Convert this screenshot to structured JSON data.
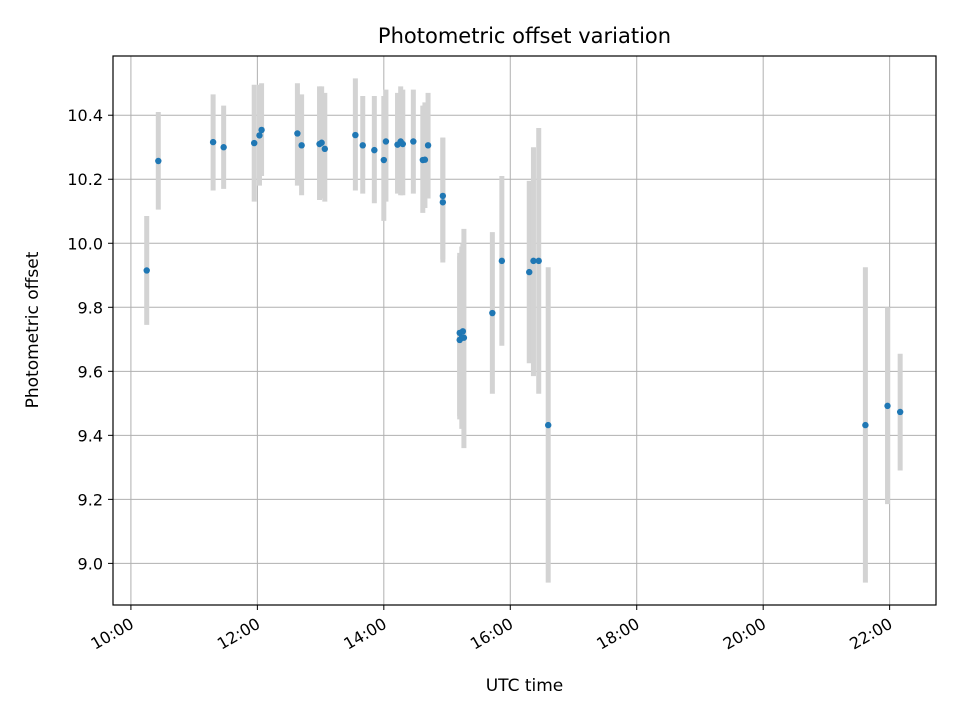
{
  "chart_data": {
    "type": "scatter",
    "title": "Photometric offset variation",
    "xlabel": "UTC time",
    "ylabel": "Photometric offset",
    "x_axis": {
      "kind": "time",
      "range": [
        "09:43",
        "22:44"
      ],
      "ticks": [
        "10:00",
        "12:00",
        "14:00",
        "16:00",
        "18:00",
        "20:00",
        "22:00"
      ]
    },
    "y_axis": {
      "range": [
        8.87,
        10.585
      ],
      "ticks": [
        "9.0",
        "9.2",
        "9.4",
        "9.6",
        "9.8",
        "10.0",
        "10.2",
        "10.4"
      ]
    },
    "grid": true,
    "colors": {
      "points": "#1f77b4",
      "error_bars": "#d3d3d3"
    },
    "points": [
      {
        "x": "10:15",
        "y": 9.915,
        "yerr": [
          9.745,
          10.085
        ]
      },
      {
        "x": "10:26",
        "y": 10.257,
        "yerr": [
          10.105,
          10.41
        ]
      },
      {
        "x": "11:18",
        "y": 10.316,
        "yerr": [
          10.165,
          10.465
        ]
      },
      {
        "x": "11:28",
        "y": 10.3,
        "yerr": [
          10.17,
          10.43
        ]
      },
      {
        "x": "11:57",
        "y": 10.313,
        "yerr": [
          10.13,
          10.495
        ]
      },
      {
        "x": "12:02",
        "y": 10.337,
        "yerr": [
          10.18,
          10.495
        ]
      },
      {
        "x": "12:04",
        "y": 10.354,
        "yerr": [
          10.21,
          10.5
        ]
      },
      {
        "x": "12:38",
        "y": 10.343,
        "yerr": [
          10.18,
          10.5
        ]
      },
      {
        "x": "12:42",
        "y": 10.306,
        "yerr": [
          10.15,
          10.465
        ]
      },
      {
        "x": "12:59",
        "y": 10.31,
        "yerr": [
          10.135,
          10.49
        ]
      },
      {
        "x": "13:01",
        "y": 10.314,
        "yerr": [
          10.14,
          10.49
        ]
      },
      {
        "x": "13:04",
        "y": 10.295,
        "yerr": [
          10.13,
          10.47
        ]
      },
      {
        "x": "13:33",
        "y": 10.338,
        "yerr": [
          10.165,
          10.515
        ]
      },
      {
        "x": "13:40",
        "y": 10.306,
        "yerr": [
          10.155,
          10.46
        ]
      },
      {
        "x": "13:51",
        "y": 10.291,
        "yerr": [
          10.125,
          10.46
        ]
      },
      {
        "x": "14:00",
        "y": 10.26,
        "yerr": [
          10.07,
          10.46
        ]
      },
      {
        "x": "14:02",
        "y": 10.318,
        "yerr": [
          10.13,
          10.48
        ]
      },
      {
        "x": "14:13",
        "y": 10.308,
        "yerr": [
          10.155,
          10.47
        ]
      },
      {
        "x": "14:16",
        "y": 10.318,
        "yerr": [
          10.15,
          10.49
        ]
      },
      {
        "x": "14:18",
        "y": 10.31,
        "yerr": [
          10.15,
          10.48
        ]
      },
      {
        "x": "14:28",
        "y": 10.318,
        "yerr": [
          10.155,
          10.48
        ]
      },
      {
        "x": "14:37",
        "y": 10.26,
        "yerr": [
          10.095,
          10.43
        ]
      },
      {
        "x": "14:39",
        "y": 10.261,
        "yerr": [
          10.11,
          10.44
        ]
      },
      {
        "x": "14:42",
        "y": 10.306,
        "yerr": [
          10.14,
          10.47
        ]
      },
      {
        "x": "14:56",
        "y": 10.148,
        "yerr": [
          9.95,
          10.33
        ]
      },
      {
        "x": "14:56",
        "y": 10.128,
        "yerr": [
          9.94,
          10.33
        ]
      },
      {
        "x": "15:12",
        "y": 9.72,
        "yerr": [
          9.45,
          9.97
        ]
      },
      {
        "x": "15:12",
        "y": 9.698,
        "yerr": [
          9.46,
          9.96
        ]
      },
      {
        "x": "15:14",
        "y": 9.705,
        "yerr": [
          9.42,
          9.99
        ]
      },
      {
        "x": "15:15",
        "y": 9.725,
        "yerr": [
          9.43,
          10.0
        ]
      },
      {
        "x": "15:16",
        "y": 9.705,
        "yerr": [
          9.36,
          10.045
        ]
      },
      {
        "x": "15:43",
        "y": 9.782,
        "yerr": [
          9.53,
          10.035
        ]
      },
      {
        "x": "15:52",
        "y": 9.945,
        "yerr": [
          9.68,
          10.21
        ]
      },
      {
        "x": "16:18",
        "y": 9.91,
        "yerr": [
          9.625,
          10.195
        ]
      },
      {
        "x": "16:22",
        "y": 9.945,
        "yerr": [
          9.585,
          10.3
        ]
      },
      {
        "x": "16:27",
        "y": 9.945,
        "yerr": [
          9.53,
          10.36
        ]
      },
      {
        "x": "16:36",
        "y": 9.432,
        "yerr": [
          8.94,
          9.925
        ]
      },
      {
        "x": "21:37",
        "y": 9.432,
        "yerr": [
          8.94,
          9.925
        ]
      },
      {
        "x": "21:58",
        "y": 9.492,
        "yerr": [
          9.185,
          9.8
        ]
      },
      {
        "x": "22:10",
        "y": 9.473,
        "yerr": [
          9.29,
          9.655
        ]
      }
    ]
  }
}
